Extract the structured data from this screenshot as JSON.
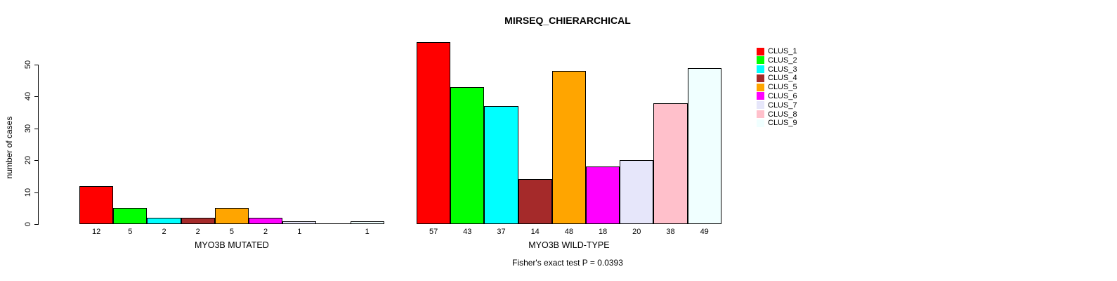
{
  "chart_data": {
    "type": "bar",
    "title": "MIRSEQ_CHIERARCHICAL",
    "ylabel": "number of cases",
    "ylim": [
      0,
      50
    ],
    "yticks": [
      0,
      10,
      20,
      30,
      40,
      50
    ],
    "grid": false,
    "legend_position": "right",
    "background": "#FFFFFF",
    "categories": [
      "MYO3B MUTATED",
      "MYO3B WILD-TYPE"
    ],
    "series": [
      {
        "name": "CLUS_1",
        "color": "#FF0000",
        "values": [
          12,
          57
        ]
      },
      {
        "name": "CLUS_2",
        "color": "#00FF00",
        "values": [
          5,
          43
        ]
      },
      {
        "name": "CLUS_3",
        "color": "#00FFFF",
        "values": [
          2,
          37
        ]
      },
      {
        "name": "CLUS_4",
        "color": "#A52A2A",
        "values": [
          2,
          14
        ]
      },
      {
        "name": "CLUS_5",
        "color": "#FFA500",
        "values": [
          5,
          48
        ]
      },
      {
        "name": "CLUS_6",
        "color": "#FF00FF",
        "values": [
          2,
          18
        ]
      },
      {
        "name": "CLUS_7",
        "color": "#E6E6FA",
        "values": [
          1,
          20
        ]
      },
      {
        "name": "CLUS_8",
        "color": "#FFC0CB",
        "values": [
          0,
          38
        ]
      },
      {
        "name": "CLUS_9",
        "color": "#F0FFFF",
        "values": [
          1,
          49
        ]
      }
    ],
    "bar_value_labels_shown": true,
    "zero_values_unlabeled": true,
    "annotation": "Fisher's exact test P = 0.0393"
  }
}
